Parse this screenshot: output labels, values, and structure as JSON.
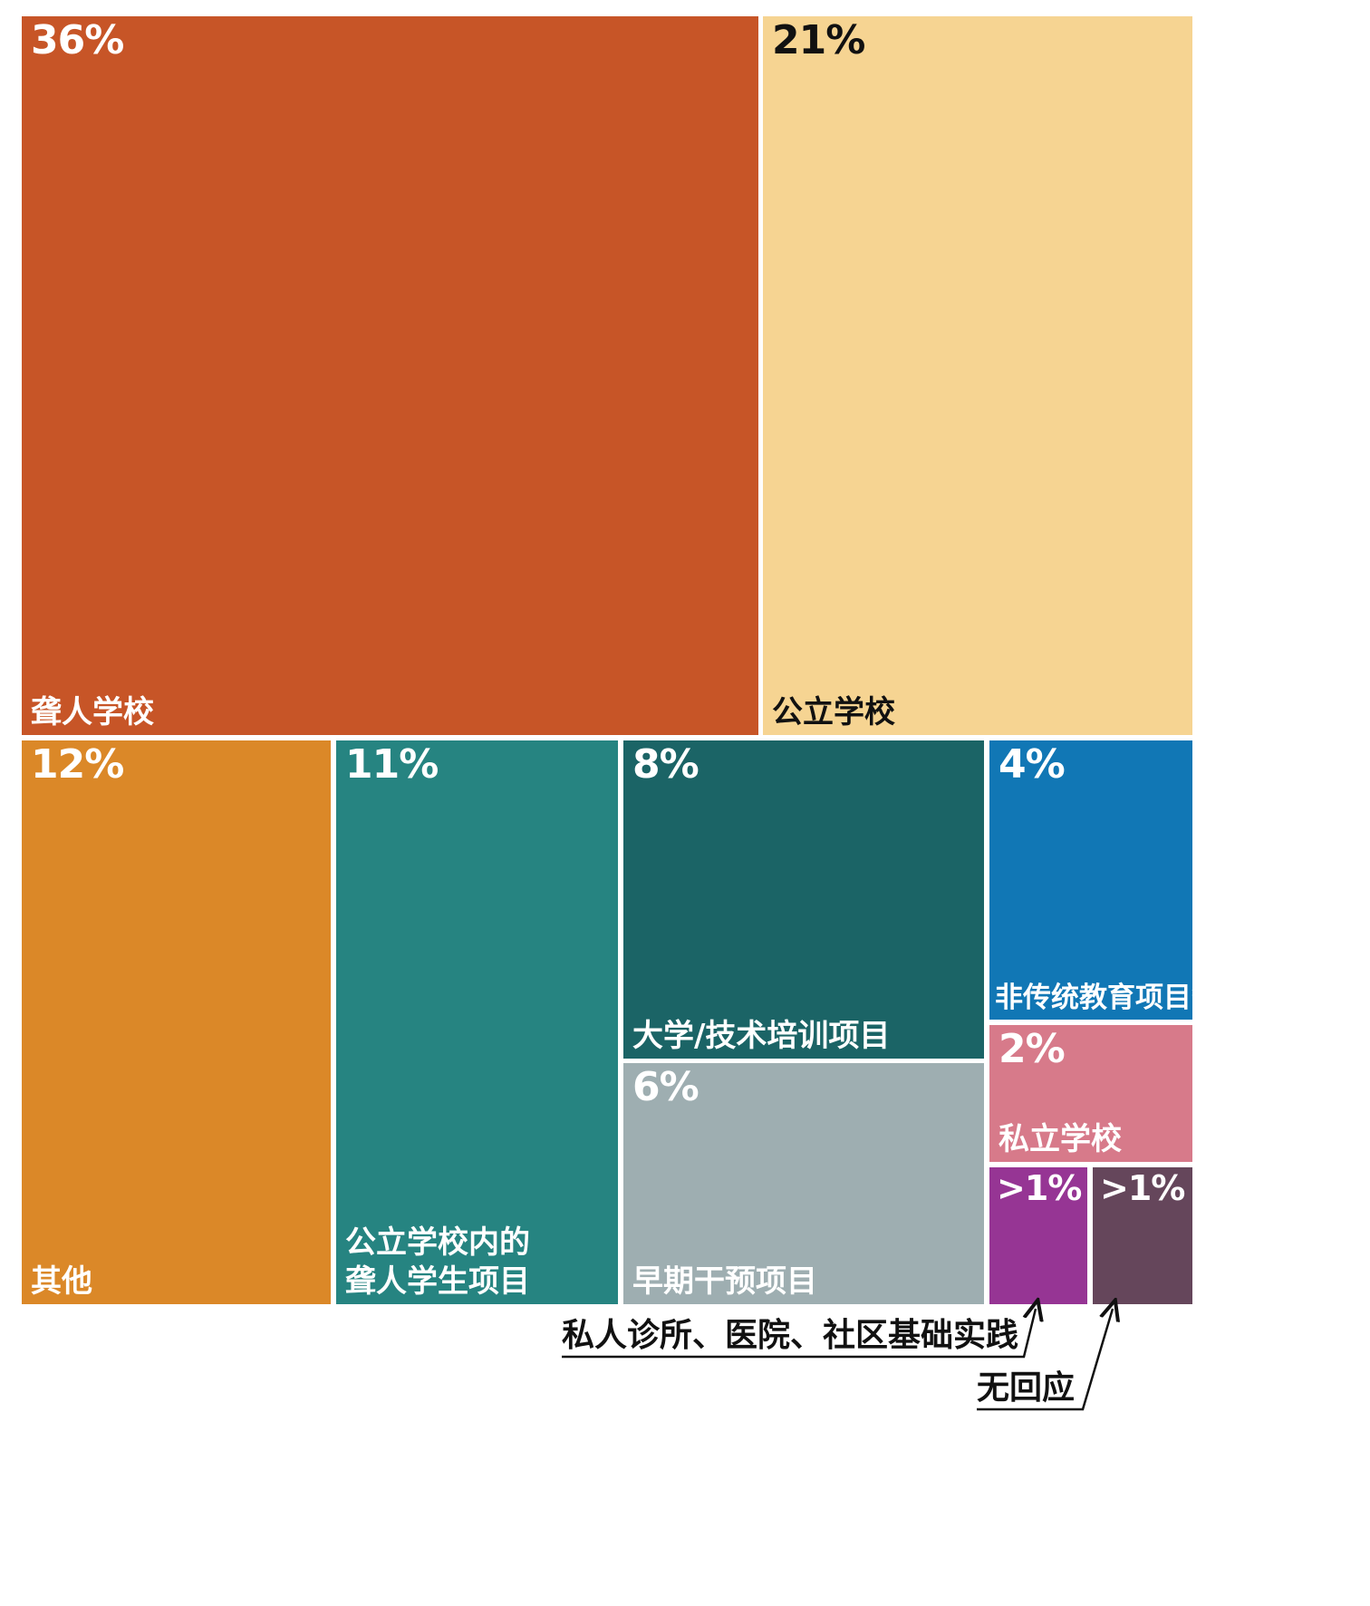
{
  "chart_data": {
    "type": "treemap",
    "items": [
      {
        "id": "deaf-school",
        "value_label": "36%",
        "label_lines": [
          "聋人学校"
        ],
        "value": 36,
        "color": "#C75527",
        "text_color": "#ffffff"
      },
      {
        "id": "public-school",
        "value_label": "21%",
        "label_lines": [
          "公立学校"
        ],
        "value": 21,
        "color": "#F6D492",
        "text_color": "#111111"
      },
      {
        "id": "other",
        "value_label": "12%",
        "label_lines": [
          "其他"
        ],
        "value": 12,
        "color": "#DB8828",
        "text_color": "#ffffff"
      },
      {
        "id": "public-deaf-program",
        "value_label": "11%",
        "label_lines": [
          "公立学校内的",
          "聋人学生项目"
        ],
        "value": 11,
        "color": "#268481",
        "text_color": "#ffffff"
      },
      {
        "id": "college-training",
        "value_label": "8%",
        "label_lines": [
          "大学/技术培训项目"
        ],
        "value": 8,
        "color": "#1B6466",
        "text_color": "#ffffff"
      },
      {
        "id": "early-intervention",
        "value_label": "6%",
        "label_lines": [
          "早期干预项目"
        ],
        "value": 6,
        "color": "#9EAEB1",
        "text_color": "#ffffff"
      },
      {
        "id": "nontraditional",
        "value_label": "4%",
        "label_lines": [
          "非传统教育项目*"
        ],
        "value": 4,
        "color": "#1177B5",
        "text_color": "#ffffff"
      },
      {
        "id": "private-school",
        "value_label": "2%",
        "label_lines": [
          "私立学校"
        ],
        "value": 2,
        "color": "#D77A8A",
        "text_color": "#ffffff"
      },
      {
        "id": "clinics",
        "value_label": ">1%",
        "label_lines": [],
        "value": 1,
        "color": "#963594",
        "text_color": "#ffffff"
      },
      {
        "id": "no-response",
        "value_label": ">1%",
        "label_lines": [],
        "value": 1,
        "color": "#65465B",
        "text_color": "#ffffff"
      }
    ],
    "callouts": [
      {
        "target": "clinics",
        "text": "私人诊所、医院、社区基础实践"
      },
      {
        "target": "no-response",
        "text": "无回应"
      }
    ]
  }
}
